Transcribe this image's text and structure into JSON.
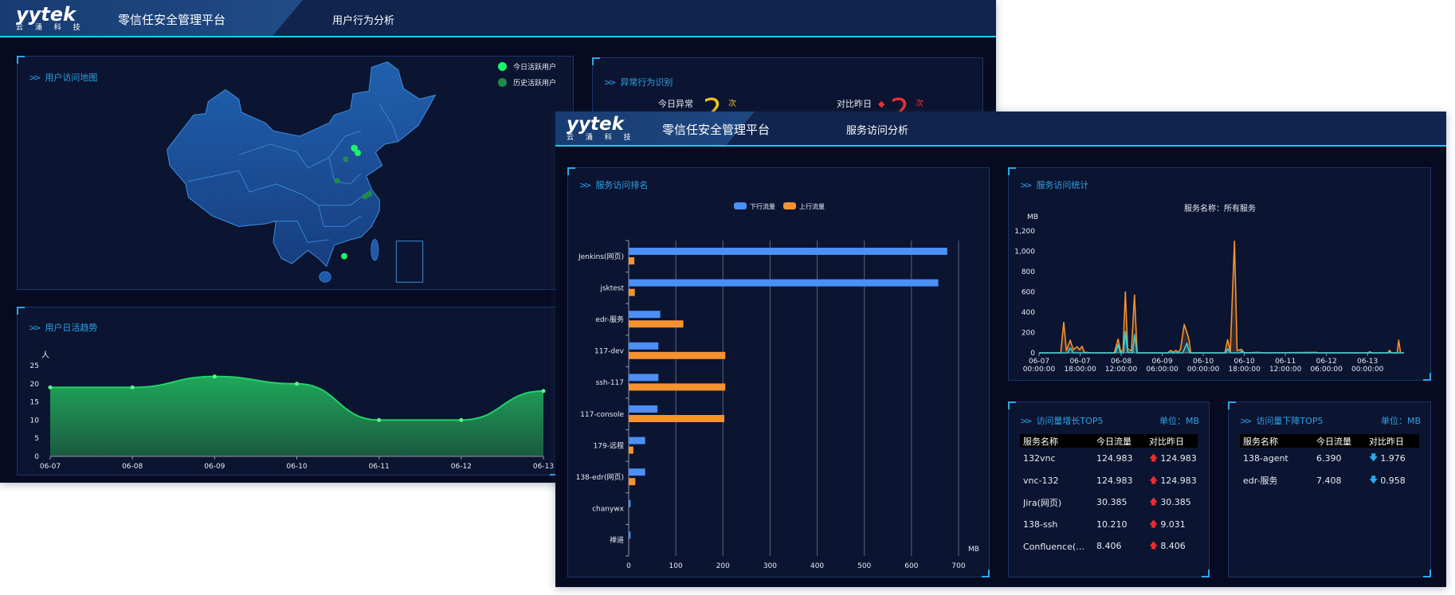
{
  "brand": {
    "logo": "yytek",
    "logo_sub": "云 涌 科 技",
    "platform": "零信任安全管理平台"
  },
  "back_window": {
    "page_title": "用户行为分析",
    "map": {
      "title": "用户访问地图",
      "legend": [
        {
          "label": "今日活跃用户",
          "color": "#19f56a"
        },
        {
          "label": "历史活跃用户",
          "color": "#1f8a4a"
        }
      ]
    },
    "abnormal": {
      "title": "异常行为识别",
      "today_label": "今日异常",
      "today_value": "2",
      "today_unit": "次",
      "compare_label": "对比昨日",
      "compare_value": "2",
      "compare_unit": "次"
    },
    "trend": {
      "title": "用户日活趋势"
    }
  },
  "front_window": {
    "page_title": "服务访问分析",
    "ranking": {
      "title": "服务访问排名"
    },
    "stats": {
      "title": "服务访问统计"
    },
    "top_up": {
      "title": "访问量增长TOP5",
      "unit": "单位：MB",
      "headers": [
        "服务名称",
        "今日流量",
        "对比昨日"
      ],
      "rows": [
        [
          "132vnc",
          "124.983",
          "124.983"
        ],
        [
          "vnc-132",
          "124.983",
          "124.983"
        ],
        [
          "Jira(网页)",
          "30.385",
          "30.385"
        ],
        [
          "138-ssh",
          "10.210",
          "9.031"
        ],
        [
          "Confluence(网页)",
          "8.406",
          "8.406"
        ]
      ]
    },
    "top_down": {
      "title": "访问量下降TOP5",
      "unit": "单位：MB",
      "headers": [
        "服务名称",
        "今日流量",
        "对比昨日"
      ],
      "rows": [
        [
          "138-agent",
          "6.390",
          "1.976"
        ],
        [
          "edr-服务",
          "7.408",
          "0.958"
        ]
      ]
    }
  },
  "chart_data": [
    {
      "type": "area",
      "ylabel": "人",
      "categories": [
        "06-07",
        "06-08",
        "06-09",
        "06-10",
        "06-11",
        "06-12",
        "06-13"
      ],
      "values": [
        19,
        19,
        22,
        20,
        10,
        10,
        18
      ],
      "ylim": [
        0,
        25
      ],
      "yticks": [
        0,
        5,
        10,
        15,
        20,
        25
      ],
      "color": "#1fd36a",
      "grid": false
    },
    {
      "type": "bar",
      "orientation": "horizontal",
      "xlabel": "MB",
      "categories": [
        "Jenkins(网页)",
        "jsktest",
        "edr-服务",
        "117-dev",
        "ssh-117",
        "117-console",
        "179-远程",
        "138-edr(网页)",
        "chanywx",
        "禅道"
      ],
      "series": [
        {
          "name": "下行流量",
          "color": "#4b8ff7",
          "values": [
            676,
            657,
            67,
            63,
            63,
            61,
            35,
            35,
            4,
            4
          ]
        },
        {
          "name": "上行流量",
          "color": "#f7922f",
          "values": [
            12,
            13,
            116,
            205,
            205,
            203,
            10,
            14,
            0,
            0
          ]
        }
      ],
      "xlim": [
        0,
        700
      ],
      "xticks": [
        0,
        100,
        200,
        300,
        400,
        500,
        600,
        700
      ],
      "grid": true,
      "legend": "top"
    },
    {
      "type": "line",
      "title": "服务名称：所有服务",
      "ylabel": "MB",
      "ylim": [
        0,
        1200
      ],
      "yticks": [
        "0",
        "200",
        "400",
        "600",
        "800",
        "1,000",
        "1,200"
      ],
      "xticks": [
        "06-07\n00:00:00",
        "06-07\n18:00:00",
        "06-08\n12:00:00",
        "06-09\n06:00:00",
        "06-10\n00:00:00",
        "06-10\n18:00:00",
        "06-11\n12:00:00",
        "06-12\n06:00:00",
        "06-13\n00:00:00"
      ],
      "series": [
        {
          "color": "#f7922f",
          "points": [
            [
              "06-07 00:00",
              0
            ],
            [
              "06-07 09:30",
              0
            ],
            [
              "06-07 10:50",
              300
            ],
            [
              "06-07 12:00",
              20
            ],
            [
              "06-07 13:40",
              125
            ],
            [
              "06-07 15:00",
              30
            ],
            [
              "06-07 16:40",
              60
            ],
            [
              "06-07 17:50",
              30
            ],
            [
              "06-07 18:50",
              65
            ],
            [
              "06-07 19:50",
              5
            ],
            [
              "06-07 21:00",
              5
            ],
            [
              "06-07 23:00",
              0
            ],
            [
              "06-08 09:00",
              0
            ],
            [
              "06-08 10:40",
              135
            ],
            [
              "06-08 11:50",
              10
            ],
            [
              "06-08 12:50",
              30
            ],
            [
              "06-08 13:50",
              600
            ],
            [
              "06-08 14:50",
              40
            ],
            [
              "06-08 16:30",
              20
            ],
            [
              "06-08 17:50",
              570
            ],
            [
              "06-08 19:00",
              0
            ],
            [
              "06-09 08:30",
              0
            ],
            [
              "06-09 09:40",
              25
            ],
            [
              "06-09 10:50",
              5
            ],
            [
              "06-09 12:00",
              25
            ],
            [
              "06-09 13:00",
              5
            ],
            [
              "06-09 14:00",
              35
            ],
            [
              "06-09 15:40",
              280
            ],
            [
              "06-09 16:50",
              200
            ],
            [
              "06-09 17:50",
              120
            ],
            [
              "06-09 18:30",
              0
            ],
            [
              "06-10 09:30",
              0
            ],
            [
              "06-10 10:40",
              130
            ],
            [
              "06-10 11:50",
              10
            ],
            [
              "06-10 13:40",
              1100
            ],
            [
              "06-10 14:50",
              20
            ],
            [
              "06-10 16:40",
              35
            ],
            [
              "06-10 18:00",
              0
            ],
            [
              "06-11 00:00",
              5
            ],
            [
              "06-11 02:00",
              0
            ],
            [
              "06-12 01:30",
              5
            ],
            [
              "06-12 02:30",
              0
            ],
            [
              "06-13 00:00",
              0
            ],
            [
              "06-13 01:00",
              10
            ],
            [
              "06-13 02:00",
              0
            ],
            [
              "06-13 08:50",
              0
            ],
            [
              "06-13 09:40",
              25
            ],
            [
              "06-13 10:30",
              0
            ],
            [
              "06-13 13:00",
              0
            ],
            [
              "06-13 13:40",
              125
            ],
            [
              "06-13 14:30",
              0
            ],
            [
              "06-13 16:00",
              0
            ]
          ]
        },
        {
          "color": "#2fd3e0",
          "points": [
            [
              "06-07 00:00",
              0
            ],
            [
              "06-07 12:30",
              0
            ],
            [
              "06-07 13:40",
              50
            ],
            [
              "06-07 15:00",
              0
            ],
            [
              "06-08 09:30",
              0
            ],
            [
              "06-08 10:40",
              80
            ],
            [
              "06-08 11:40",
              0
            ],
            [
              "06-08 13:00",
              0
            ],
            [
              "06-08 13:50",
              210
            ],
            [
              "06-08 14:50",
              10
            ],
            [
              "06-08 17:00",
              0
            ],
            [
              "06-08 17:50",
              180
            ],
            [
              "06-08 19:00",
              0
            ],
            [
              "06-09 15:00",
              0
            ],
            [
              "06-09 16:50",
              95
            ],
            [
              "06-09 18:00",
              0
            ],
            [
              "06-10 09:50",
              0
            ],
            [
              "06-10 10:40",
              40
            ],
            [
              "06-10 12:00",
              0
            ],
            [
              "06-10 16:00",
              0
            ],
            [
              "06-10 16:40",
              15
            ],
            [
              "06-10 18:00",
              0
            ],
            [
              "06-13 09:00",
              0
            ],
            [
              "06-13 09:40",
              10
            ],
            [
              "06-13 10:20",
              0
            ],
            [
              "06-13 16:00",
              0
            ]
          ]
        }
      ]
    }
  ]
}
